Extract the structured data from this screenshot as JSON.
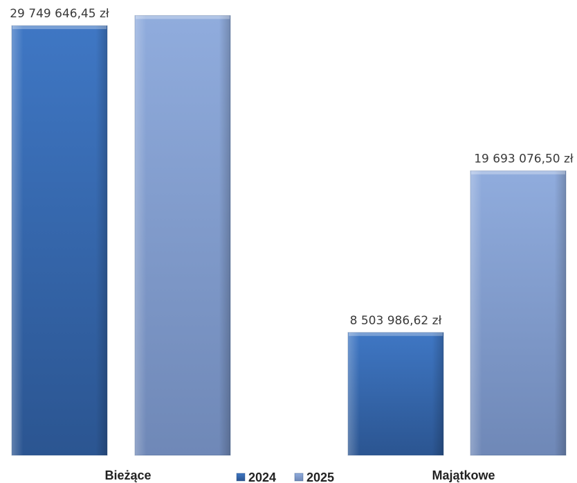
{
  "chart_data": {
    "type": "bar",
    "categories": [
      "Bieżące",
      "Majątkowe"
    ],
    "series": [
      {
        "name": "2024",
        "values": [
          29749646.45,
          8503986.62
        ],
        "labels": [
          "29 749 646,45 zł",
          "8 503 986,62 zł"
        ],
        "color": "#3a6bb2"
      },
      {
        "name": "2025",
        "values": [
          30450000,
          19693076.5
        ],
        "labels": [
          "",
          "19 693 076,50 zł"
        ],
        "color": "#8aa5d4"
      }
    ],
    "legend_position": "bottom-center",
    "grid": false
  }
}
